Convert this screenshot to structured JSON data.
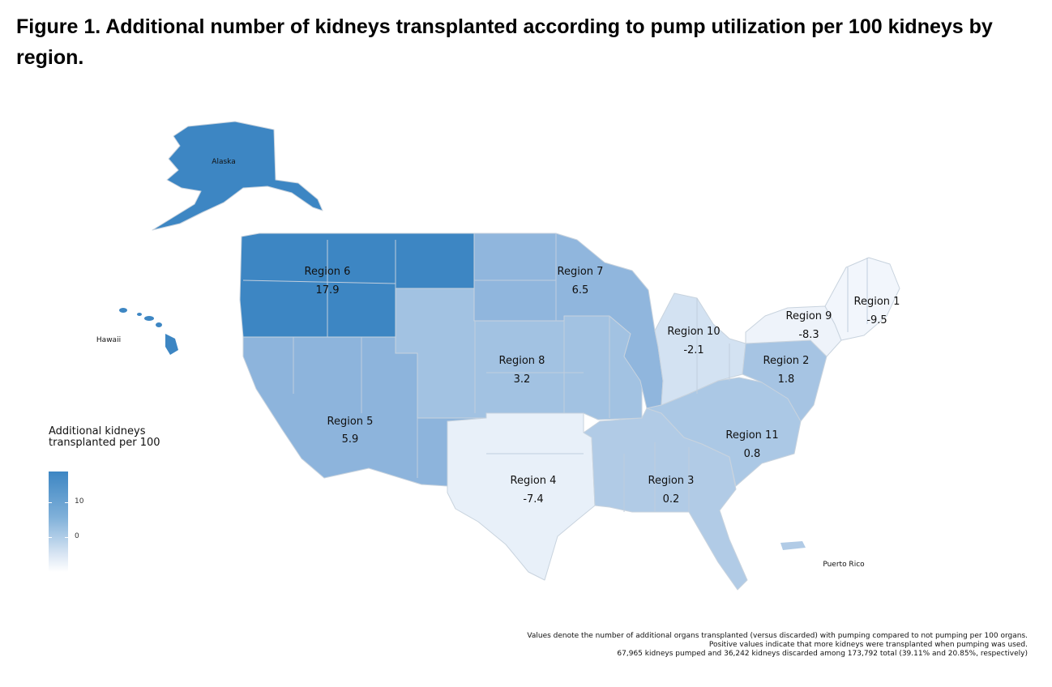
{
  "title": "Figure 1. Additional number of kidneys transplanted according to pump utilization per 100 kidneys by region.",
  "legend": {
    "title": "Additional kidneys transplanted per 100",
    "ticks": [
      "10",
      "0"
    ],
    "color_high": "#3d86c3",
    "color_low": "#ffffff"
  },
  "regions": [
    {
      "name": "Region 1",
      "value": "-9.5",
      "color": "#f2f6fc"
    },
    {
      "name": "Region 2",
      "value": "1.8",
      "color": "#a6c4e3"
    },
    {
      "name": "Region 3",
      "value": "0.2",
      "color": "#b1cbe6"
    },
    {
      "name": "Region 4",
      "value": "-7.4",
      "color": "#e8f0f9"
    },
    {
      "name": "Region 5",
      "value": "5.9",
      "color": "#8db4dc"
    },
    {
      "name": "Region 6",
      "value": "17.9",
      "color": "#3d86c3"
    },
    {
      "name": "Region 7",
      "value": "6.5",
      "color": "#90b6dd"
    },
    {
      "name": "Region 8",
      "value": "3.2",
      "color": "#a2c2e2"
    },
    {
      "name": "Region 9",
      "value": "-8.3",
      "color": "#eef3fa"
    },
    {
      "name": "Region 10",
      "value": "-2.1",
      "color": "#d3e2f2"
    },
    {
      "name": "Region 11",
      "value": "0.8",
      "color": "#abc8e5"
    }
  ],
  "places": {
    "alaska": "Alaska",
    "hawaii": "Hawaii",
    "puerto_rico": "Puerto Rico"
  },
  "notes": [
    "Values denote the number of additional organs transplanted (versus discarded) with pumping compared to not pumping per 100 organs.",
    "Positive values indicate that more kidneys were transplanted when pumping was used.",
    "67,965 kidneys pumped and 36,242 kidneys discarded among 173,792 total (39.11% and 20.85%, respectively)"
  ]
}
